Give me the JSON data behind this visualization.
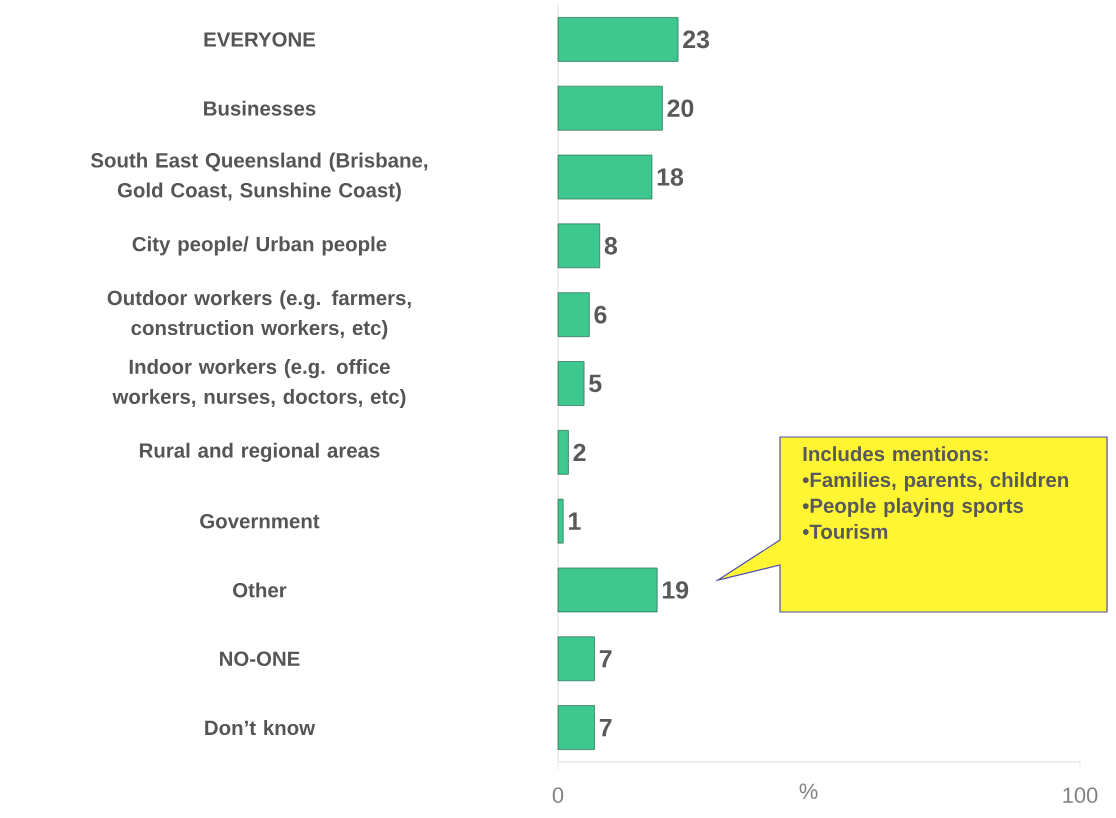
{
  "chart_data": {
    "type": "bar",
    "orientation": "horizontal",
    "categories": [
      "EVERYONE",
      "Businesses",
      "South East Queensland (Brisbane, Gold Coast, Sunshine Coast)",
      "City people/ Urban people",
      "Outdoor workers (e.g. farmers, construction workers, etc)",
      "Indoor workers (e.g. office workers, nurses, doctors, etc)",
      "Rural and regional areas",
      "Government",
      "Other",
      "NO-ONE",
      "Don’t know"
    ],
    "values": [
      23,
      20,
      18,
      8,
      6,
      5,
      2,
      1,
      19,
      7,
      7
    ],
    "color": "#3ec78e",
    "xlim": [
      0,
      100
    ],
    "xticks": [
      0,
      100
    ],
    "xlabel": "%",
    "data_labels": true,
    "annotations": [
      "Includes mentions:",
      "•Families, parents, children",
      "•People playing sports",
      "•Tourism"
    ]
  }
}
